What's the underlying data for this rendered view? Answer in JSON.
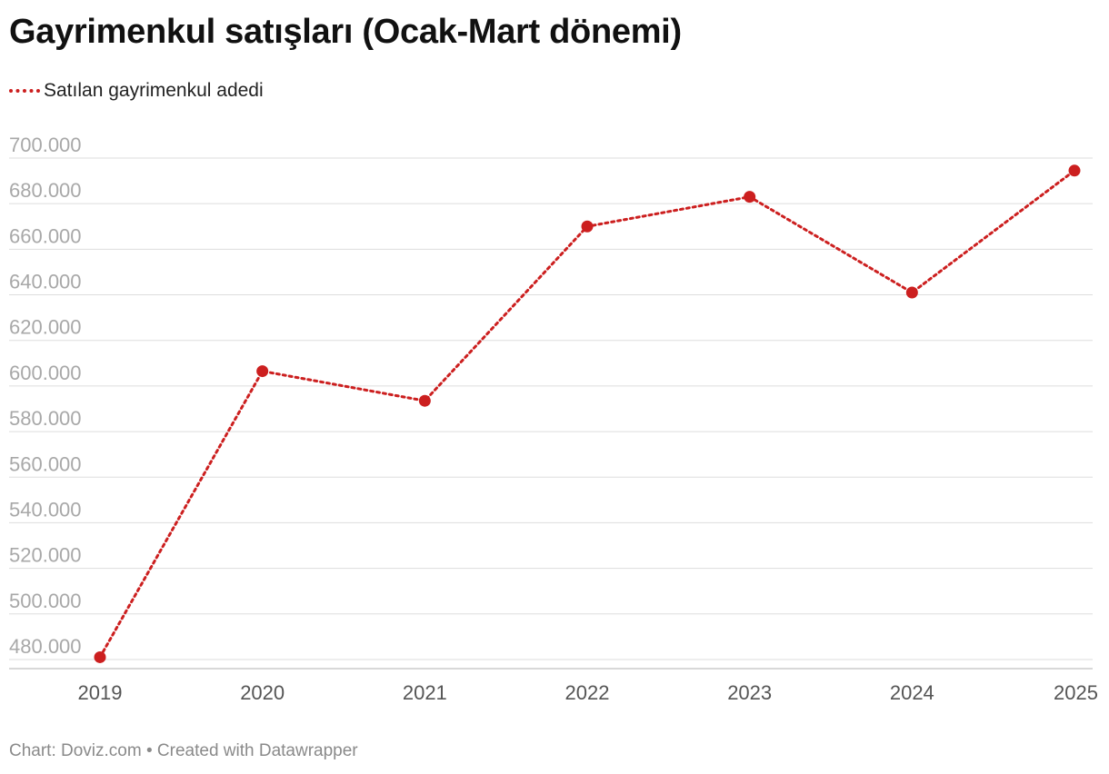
{
  "title": "Gayrimenkul satışları (Ocak-Mart dönemi)",
  "legend": {
    "label": "Satılan gayrimenkul adedi"
  },
  "footer": "Chart: Doviz.com • Created with Datawrapper",
  "colors": {
    "series": "#cc1f1f",
    "grid": "#dddddd",
    "axis": "#cccccc"
  },
  "chart_data": {
    "type": "line",
    "title": "Gayrimenkul satışları (Ocak-Mart dönemi)",
    "xlabel": "",
    "ylabel": "",
    "ylim": [
      476000,
      700000
    ],
    "grid": true,
    "legend_position": "top-left",
    "x": [
      "2019",
      "2020",
      "2021",
      "2022",
      "2023",
      "2024",
      "2025"
    ],
    "y_ticks": [
      480000,
      500000,
      520000,
      540000,
      560000,
      580000,
      600000,
      620000,
      640000,
      660000,
      680000,
      700000
    ],
    "y_tick_labels": [
      "480.000",
      "500.000",
      "520.000",
      "540.000",
      "560.000",
      "580.000",
      "600.000",
      "620.000",
      "640.000",
      "660.000",
      "680.000",
      "700.000"
    ],
    "series": [
      {
        "name": "Satılan gayrimenkul adedi",
        "values": [
          481000,
          606500,
          593500,
          670000,
          683000,
          641000,
          694500
        ]
      }
    ]
  }
}
